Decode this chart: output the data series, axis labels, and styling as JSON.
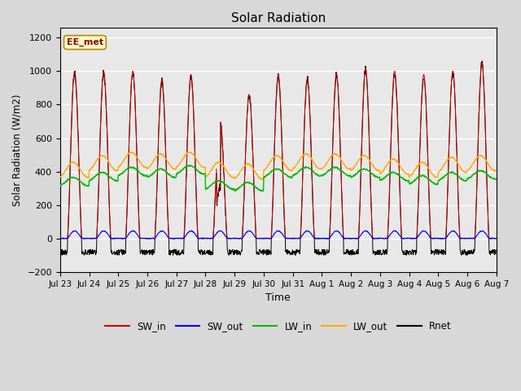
{
  "title": "Solar Radiation",
  "xlabel": "Time",
  "ylabel": "Solar Radiation (W/m2)",
  "ylim": [
    -200,
    1260
  ],
  "yticks": [
    -200,
    0,
    200,
    400,
    600,
    800,
    1000,
    1200
  ],
  "date_labels": [
    "Jul 23",
    "Jul 24",
    "Jul 25",
    "Jul 26",
    "Jul 27",
    "Jul 28",
    "Jul 29",
    "Jul 30",
    "Jul 31",
    "Aug 1",
    "Aug 2",
    "Aug 3",
    "Aug 4",
    "Aug 5",
    "Aug 6",
    "Aug 7"
  ],
  "annotation_text": "EE_met",
  "colors": {
    "SW_in": "#cc0000",
    "SW_out": "#0000ee",
    "LW_in": "#00bb00",
    "LW_out": "#ffaa00",
    "Rnet": "#000000"
  },
  "background_color": "#d8d8d8",
  "plot_bg_color": "#e8e8e8",
  "grid_color": "#ffffff",
  "n_days": 15,
  "SW_in_peaks": [
    1000,
    1000,
    1000,
    950,
    980,
    700,
    860,
    980,
    960,
    990,
    1020,
    1000,
    980,
    1000,
    1050
  ],
  "LW_in_base": 370,
  "LW_out_base": 430,
  "figsize": [
    6.4,
    4.8
  ],
  "dpi": 100
}
